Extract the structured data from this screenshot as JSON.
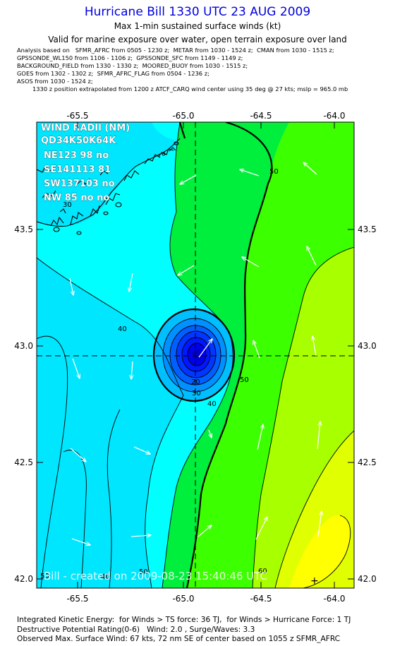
{
  "header": {
    "title": "Hurricane Bill 1330 UTC 23 AUG 2009",
    "subtitle": "Max 1-min sustained surface winds (kt)",
    "validity": "Valid for marine exposure over water, open terrain exposure over land",
    "analysis_lines": [
      "Analysis based on   SFMR_AFRC from 0505 - 1230 z;  METAR from 1030 - 1524 z;  CMAN from 1030 - 1515 z;",
      "GPSSONDE_WL150 from 1106 - 1106 z;  GPSSONDE_SFC from 1149 - 1149 z;",
      "BACKGROUND_FIELD from 1330 - 1330 z;  MOORED_BUOY from 1030 - 1515 z;",
      "GOES from 1302 - 1302 z;  SFMR_AFRC_FLAG from 0504 - 1236 z;",
      "ASOS from 1030 - 1524 z;"
    ],
    "position_note": "1330 z position extrapolated from 1200 z ATCF_CARQ wind center using 35 deg @ 27 kts; mslp = 965.0 mb"
  },
  "map": {
    "lon_ticks": [
      "-65.5",
      "-65.0",
      "-64.5",
      "-64.0"
    ],
    "lat_ticks": [
      "43.5",
      "43.0",
      "42.5",
      "42.0"
    ],
    "wind_radii": {
      "header": "WIND RADII (NM)",
      "columns": "QD34K50K64K",
      "rows": [
        "NE123 98  no",
        "SE141113 81",
        "SW137103  no",
        "NW 85  no  no"
      ]
    },
    "contour_labels": [
      "50",
      "30",
      "40",
      "20",
      "30",
      "40",
      "50",
      "50",
      "60",
      "40",
      "50"
    ],
    "credit": "Bill - created on 2009-08-23 15:40:46 UTC",
    "center_marker": "+",
    "colors": {
      "bg_cyan": "#00e6ff",
      "bright_cyan": "#00ffff",
      "cyan_green": "#00ffa8",
      "green": "#00ee3c",
      "bright_green": "#3cff00",
      "lime": "#a8ff00",
      "yellow_green": "#e0ff00",
      "yellow": "#ffff00",
      "eye_blue": "#0000ee"
    }
  },
  "footer": {
    "lines": [
      "Integrated Kinetic Energy:  for Winds > TS force: 36 TJ,  for Winds > Hurricane Force: 1 TJ",
      "Destructive Potential Rating(0-6)   Wind: 2.0 , Surge/Waves: 3.3",
      "Observed Max. Surface Wind: 67 kts, 72 nm SE of center based on 1055 z SFMR_AFRC"
    ]
  }
}
